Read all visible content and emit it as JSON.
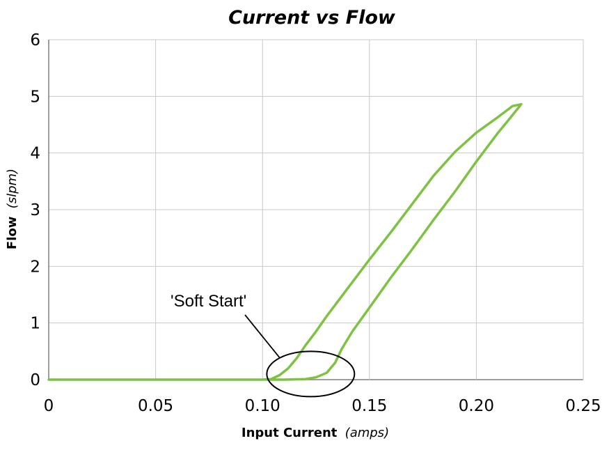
{
  "chart_data": {
    "type": "line",
    "title": "Current vs Flow",
    "xlabel": "Input Current",
    "xlabel_unit": "(amps)",
    "ylabel": "Flow",
    "ylabel_unit": "(slpm)",
    "xlim": [
      0,
      0.25
    ],
    "ylim": [
      0,
      6
    ],
    "x_ticks": [
      "0",
      "0.05",
      "0.10",
      "0.15",
      "0.20",
      "0.25"
    ],
    "y_ticks": [
      "0",
      "1",
      "2",
      "3",
      "4",
      "5",
      "6"
    ],
    "grid": true,
    "line_color": "#7dc241",
    "series": [
      {
        "values": [
          [
            0.0,
            0.0
          ],
          [
            0.05,
            0.0
          ],
          [
            0.1,
            0.0
          ],
          [
            0.104,
            0.01
          ],
          [
            0.108,
            0.08
          ],
          [
            0.112,
            0.2
          ],
          [
            0.116,
            0.38
          ],
          [
            0.12,
            0.6
          ],
          [
            0.125,
            0.85
          ],
          [
            0.13,
            1.12
          ],
          [
            0.14,
            1.62
          ],
          [
            0.15,
            2.12
          ],
          [
            0.16,
            2.6
          ],
          [
            0.17,
            3.1
          ],
          [
            0.18,
            3.6
          ],
          [
            0.19,
            4.02
          ],
          [
            0.2,
            4.36
          ],
          [
            0.21,
            4.63
          ],
          [
            0.217,
            4.83
          ],
          [
            0.221,
            4.86
          ],
          [
            0.215,
            4.58
          ],
          [
            0.21,
            4.35
          ],
          [
            0.2,
            3.85
          ],
          [
            0.19,
            3.32
          ],
          [
            0.18,
            2.82
          ],
          [
            0.17,
            2.3
          ],
          [
            0.16,
            1.8
          ],
          [
            0.15,
            1.27
          ],
          [
            0.142,
            0.85
          ],
          [
            0.137,
            0.54
          ],
          [
            0.134,
            0.3
          ],
          [
            0.13,
            0.12
          ],
          [
            0.125,
            0.04
          ],
          [
            0.12,
            0.01
          ],
          [
            0.11,
            0.0
          ],
          [
            0.102,
            0.0
          ]
        ]
      }
    ],
    "annotation": {
      "text": "'Soft Start'",
      "ellipse": {
        "cx": 0.1225,
        "cy": 0.1,
        "rx": 0.0205,
        "ry": 0.4
      }
    }
  }
}
